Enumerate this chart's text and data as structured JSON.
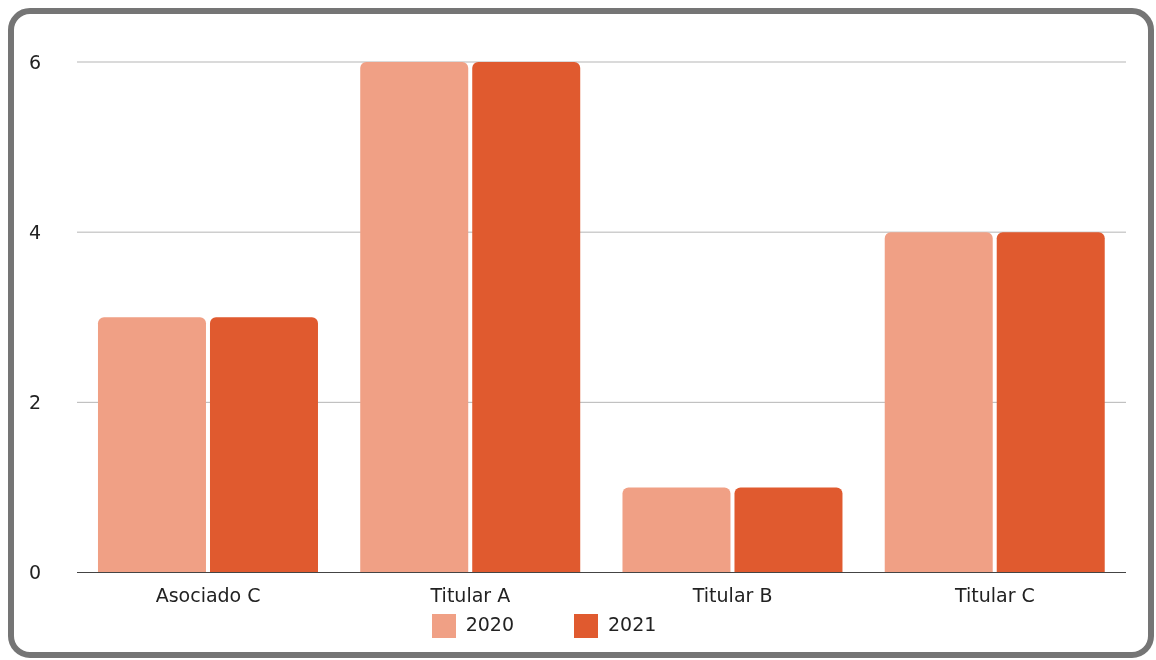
{
  "chart_data": {
    "type": "bar",
    "categories": [
      "Asociado C",
      "Titular A",
      "Titular B",
      "Titular C"
    ],
    "series": [
      {
        "name": "2020",
        "color": "#f0a085",
        "values": [
          3,
          6,
          1,
          4
        ]
      },
      {
        "name": "2021",
        "color": "#e05a2f",
        "values": [
          3,
          6,
          1,
          4
        ]
      }
    ],
    "ylim": [
      0,
      6
    ],
    "yticks": [
      0,
      2,
      4,
      6
    ],
    "grid": "y",
    "legend": "bottom"
  }
}
